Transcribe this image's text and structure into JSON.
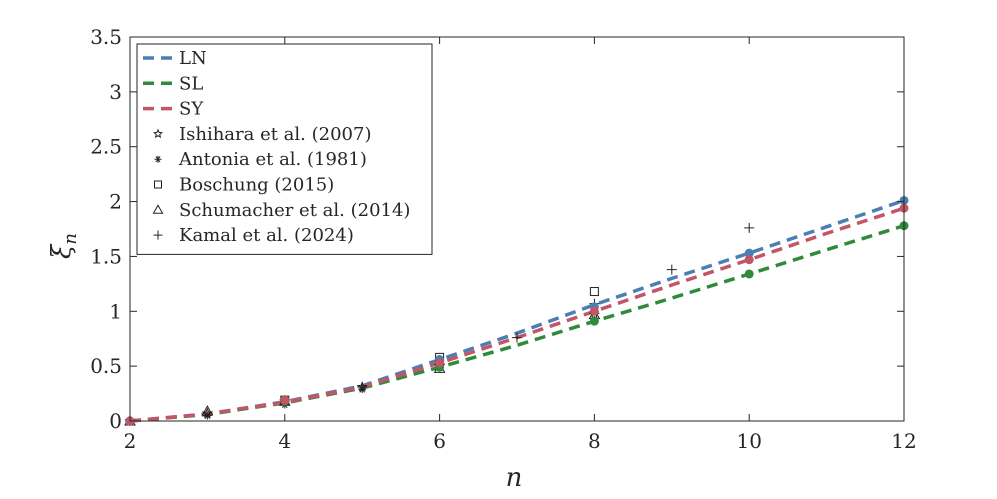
{
  "chart_data": {
    "type": "line",
    "xlabel": "n",
    "ylabel": "ξn",
    "xlim": [
      2,
      12
    ],
    "ylim": [
      0,
      3.5
    ],
    "xticks": [
      "2",
      "4",
      "6",
      "8",
      "10",
      "12"
    ],
    "yticks": [
      "0",
      "0.5",
      "1",
      "1.5",
      "2",
      "2.5",
      "3",
      "3.5"
    ],
    "grid": false,
    "legend_position": "top-left",
    "model_series": [
      {
        "name": "LN",
        "color": "#4a7fb5",
        "line": [
          [
            2,
            0
          ],
          [
            3,
            0.065
          ],
          [
            4,
            0.175
          ],
          [
            5,
            0.32
          ],
          [
            6,
            0.56
          ],
          [
            7,
            0.8
          ],
          [
            8,
            1.06
          ],
          [
            9,
            1.3
          ],
          [
            10,
            1.53
          ],
          [
            11,
            1.77
          ],
          [
            12,
            2.01
          ]
        ],
        "markers": [
          [
            2,
            0
          ],
          [
            4,
            0.19
          ],
          [
            6,
            0.56
          ],
          [
            8,
            1.04
          ],
          [
            10,
            1.53
          ],
          [
            12,
            2.01
          ]
        ]
      },
      {
        "name": "SL",
        "color": "#2e8b3a",
        "line": [
          [
            2,
            0
          ],
          [
            3,
            0.06
          ],
          [
            4,
            0.165
          ],
          [
            5,
            0.3
          ],
          [
            6,
            0.49
          ],
          [
            7,
            0.69
          ],
          [
            8,
            0.91
          ],
          [
            9,
            1.12
          ],
          [
            10,
            1.34
          ],
          [
            11,
            1.56
          ],
          [
            12,
            1.78
          ]
        ],
        "markers": [
          [
            2,
            0
          ],
          [
            4,
            0.18
          ],
          [
            6,
            0.49
          ],
          [
            8,
            0.91
          ],
          [
            10,
            1.34
          ],
          [
            12,
            1.78
          ]
        ]
      },
      {
        "name": "SY",
        "color": "#c25566",
        "line": [
          [
            2,
            0
          ],
          [
            3,
            0.065
          ],
          [
            4,
            0.17
          ],
          [
            5,
            0.31
          ],
          [
            6,
            0.53
          ],
          [
            7,
            0.76
          ],
          [
            8,
            1.0
          ],
          [
            9,
            1.24
          ],
          [
            10,
            1.47
          ],
          [
            11,
            1.71
          ],
          [
            12,
            1.94
          ]
        ],
        "markers": [
          [
            2,
            0
          ],
          [
            4,
            0.19
          ],
          [
            6,
            0.53
          ],
          [
            8,
            1.0
          ],
          [
            10,
            1.47
          ],
          [
            12,
            1.94
          ]
        ]
      }
    ],
    "experimental_series": [
      {
        "name": "Ishihara et al. (2007)",
        "marker": "star",
        "points": [
          [
            2,
            0
          ],
          [
            3,
            0.07
          ],
          [
            4,
            0.18
          ],
          [
            5,
            0.31
          ],
          [
            6,
            0.5
          ],
          [
            8,
            0.97
          ]
        ]
      },
      {
        "name": "Antonia et al. (1981)",
        "marker": "asterisk",
        "points": [
          [
            2,
            0
          ],
          [
            3,
            0.05
          ],
          [
            4,
            0.15
          ],
          [
            5,
            0.29
          ],
          [
            6,
            0.5
          ]
        ]
      },
      {
        "name": "Boschung (2015)",
        "marker": "square",
        "points": [
          [
            4,
            0.19
          ],
          [
            6,
            0.58
          ],
          [
            8,
            1.18
          ]
        ]
      },
      {
        "name": "Schumacher et al. (2014)",
        "marker": "triangle",
        "points": [
          [
            2,
            0
          ],
          [
            3,
            0.09
          ],
          [
            4,
            0.18
          ],
          [
            6,
            0.48
          ],
          [
            8,
            0.97
          ]
        ]
      },
      {
        "name": "Kamal et al. (2024)",
        "marker": "plus",
        "points": [
          [
            2,
            0
          ],
          [
            4,
            0.19
          ],
          [
            5,
            0.31
          ],
          [
            6,
            0.52
          ],
          [
            7,
            0.76
          ],
          [
            8,
            1.07
          ],
          [
            9,
            1.38
          ],
          [
            10,
            1.76
          ]
        ]
      }
    ]
  }
}
